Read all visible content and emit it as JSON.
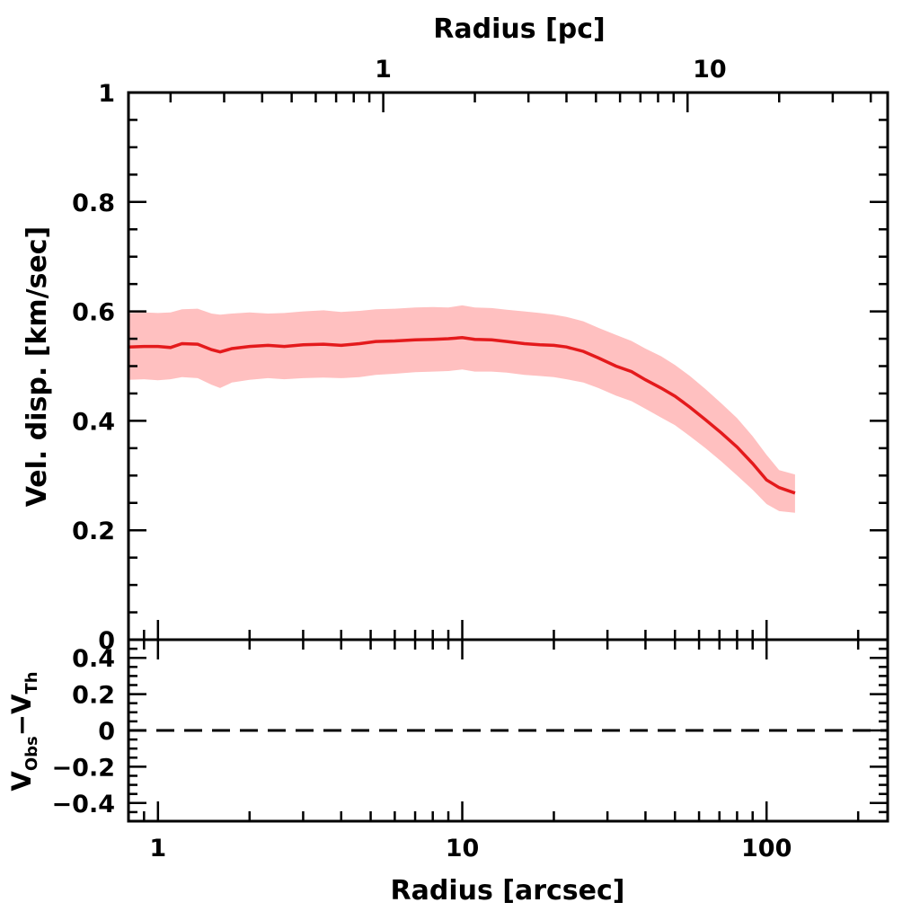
{
  "chart_data": [
    {
      "type": "area",
      "panel": "main",
      "title": "",
      "xlabel": "Radius [arcsec]",
      "x2label": "Radius [pc]",
      "ylabel": "Vel. disp. [km/sec]",
      "xscale": "log",
      "xlim": [
        0.8,
        250
      ],
      "ylim": [
        0,
        1
      ],
      "x_ticks": [
        "1",
        "10",
        "100"
      ],
      "x2_ticks": [
        "1",
        "10"
      ],
      "x2_tick_positions_arcsec": [
        5.5,
        65
      ],
      "y_ticks": [
        "0",
        "0.2",
        "0.4",
        "0.6",
        "0.8",
        "1"
      ],
      "grid": false,
      "colors": {
        "line": "#e41a1c",
        "band": "#ffc0c0"
      },
      "series": [
        {
          "x": [
            0.8,
            0.9,
            1.0,
            1.1,
            1.2,
            1.35,
            1.5,
            1.6,
            1.75,
            2.0,
            2.3,
            2.6,
            3.0,
            3.5,
            4.0,
            4.6,
            5.2,
            6.0,
            7.0,
            8.0,
            9.0,
            10.0,
            11.0,
            12.5,
            14.0,
            16.0,
            18.0,
            20.0,
            22.0,
            25.0,
            28.0,
            32.0,
            36.0,
            40.0,
            45.0,
            50.0,
            56.0,
            63.0,
            71.0,
            80.0,
            90.0,
            100.0,
            110.0,
            124.0
          ],
          "y": [
            0.535,
            0.536,
            0.536,
            0.534,
            0.541,
            0.54,
            0.53,
            0.526,
            0.532,
            0.536,
            0.538,
            0.536,
            0.539,
            0.54,
            0.538,
            0.541,
            0.545,
            0.546,
            0.548,
            0.549,
            0.55,
            0.552,
            0.549,
            0.548,
            0.545,
            0.541,
            0.539,
            0.538,
            0.535,
            0.527,
            0.515,
            0.5,
            0.49,
            0.475,
            0.46,
            0.445,
            0.425,
            0.402,
            0.378,
            0.352,
            0.322,
            0.292,
            0.278,
            0.268
          ],
          "y_upper": [
            0.597,
            0.598,
            0.597,
            0.598,
            0.604,
            0.605,
            0.596,
            0.594,
            0.596,
            0.598,
            0.596,
            0.597,
            0.6,
            0.602,
            0.599,
            0.601,
            0.604,
            0.605,
            0.607,
            0.608,
            0.607,
            0.611,
            0.607,
            0.606,
            0.603,
            0.6,
            0.597,
            0.594,
            0.59,
            0.582,
            0.57,
            0.557,
            0.546,
            0.532,
            0.518,
            0.502,
            0.482,
            0.458,
            0.432,
            0.405,
            0.372,
            0.338,
            0.31,
            0.302
          ],
          "y_lower": [
            0.475,
            0.476,
            0.474,
            0.476,
            0.48,
            0.478,
            0.466,
            0.46,
            0.47,
            0.475,
            0.478,
            0.476,
            0.478,
            0.479,
            0.478,
            0.48,
            0.484,
            0.486,
            0.489,
            0.49,
            0.491,
            0.494,
            0.49,
            0.49,
            0.488,
            0.484,
            0.482,
            0.48,
            0.476,
            0.47,
            0.46,
            0.446,
            0.436,
            0.422,
            0.406,
            0.392,
            0.372,
            0.35,
            0.326,
            0.3,
            0.274,
            0.248,
            0.235,
            0.232
          ]
        }
      ]
    },
    {
      "type": "line",
      "panel": "residual",
      "title": "",
      "xlabel": "Radius [arcsec]",
      "ylabel": "V_Obs−V_Th",
      "ylabel_parts": {
        "v1": "V",
        "sub1": "Obs",
        "minus": "−",
        "v2": "V",
        "sub2": "Th"
      },
      "xscale": "log",
      "xlim": [
        0.8,
        250
      ],
      "ylim": [
        -0.5,
        0.5
      ],
      "y_ticks": [
        "0.4",
        "0.2",
        "0",
        "−0.2",
        "−0.4"
      ],
      "y_tick_values": [
        0.4,
        0.2,
        0,
        -0.2,
        -0.4
      ],
      "grid": false,
      "reference_line": {
        "y": 0,
        "style": "dashed"
      }
    }
  ]
}
